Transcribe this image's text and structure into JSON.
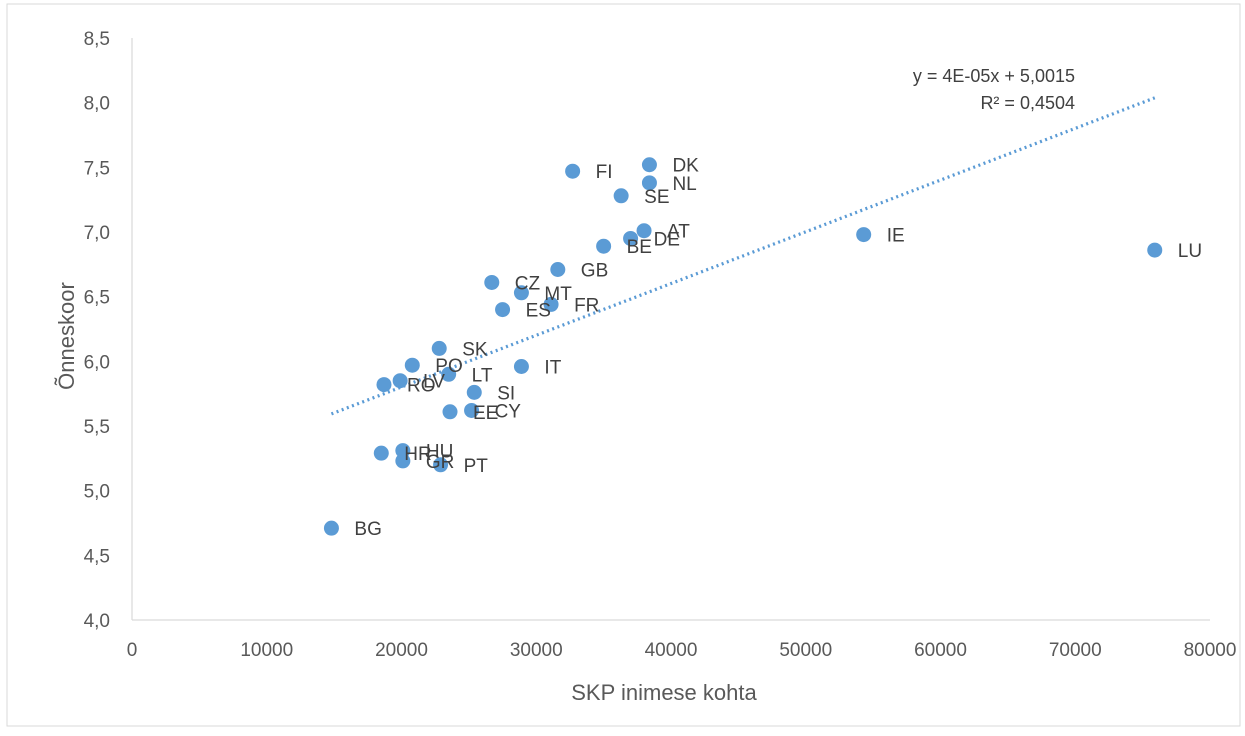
{
  "chart_data": {
    "type": "scatter",
    "xlabel": "SKP inimese kohta",
    "ylabel": "Õnneskoor",
    "xlim": [
      0,
      80000
    ],
    "ylim": [
      4.0,
      8.5
    ],
    "x_ticks": [
      "0",
      "10000",
      "20000",
      "30000",
      "40000",
      "50000",
      "60000",
      "70000",
      "80000"
    ],
    "y_ticks": [
      "4,0",
      "4,5",
      "5,0",
      "5,5",
      "6,0",
      "6,5",
      "7,0",
      "7,5",
      "8,0",
      "8,5"
    ],
    "grid": false,
    "marker_color": "#5b9bd5",
    "points": [
      {
        "label": "DK",
        "x": 38400,
        "y": 7.52
      },
      {
        "label": "FI",
        "x": 32700,
        "y": 7.47
      },
      {
        "label": "NL",
        "x": 38400,
        "y": 7.38
      },
      {
        "label": "SE",
        "x": 36300,
        "y": 7.28
      },
      {
        "label": "AT",
        "x": 38000,
        "y": 7.01
      },
      {
        "label": "DE",
        "x": 37000,
        "y": 6.95
      },
      {
        "label": "BE",
        "x": 35000,
        "y": 6.89
      },
      {
        "label": "IE",
        "x": 54300,
        "y": 6.98
      },
      {
        "label": "LU",
        "x": 75900,
        "y": 6.86
      },
      {
        "label": "GB",
        "x": 31600,
        "y": 6.71
      },
      {
        "label": "CZ",
        "x": 26700,
        "y": 6.61
      },
      {
        "label": "MT",
        "x": 28900,
        "y": 6.53
      },
      {
        "label": "FR",
        "x": 31100,
        "y": 6.44
      },
      {
        "label": "ES",
        "x": 27500,
        "y": 6.4
      },
      {
        "label": "SK",
        "x": 22800,
        "y": 6.1
      },
      {
        "label": "PO",
        "x": 20800,
        "y": 5.97
      },
      {
        "label": "IT",
        "x": 28900,
        "y": 5.96
      },
      {
        "label": "LT",
        "x": 23500,
        "y": 5.9
      },
      {
        "label": "LV",
        "x": 19900,
        "y": 5.85
      },
      {
        "label": "RO",
        "x": 18700,
        "y": 5.82
      },
      {
        "label": "SI",
        "x": 25400,
        "y": 5.76
      },
      {
        "label": "EE",
        "x": 23600,
        "y": 5.61
      },
      {
        "label": "CY",
        "x": 25200,
        "y": 5.62
      },
      {
        "label": "HU",
        "x": 20100,
        "y": 5.31
      },
      {
        "label": "HR",
        "x": 18500,
        "y": 5.29
      },
      {
        "label": "GR",
        "x": 20100,
        "y": 5.23
      },
      {
        "label": "PT",
        "x": 22900,
        "y": 5.2
      },
      {
        "label": "BG",
        "x": 14800,
        "y": 4.71
      }
    ],
    "trendline": {
      "type": "linear",
      "slope": 4e-05,
      "intercept": 5.0015,
      "x_start": 14800,
      "x_end": 75900,
      "color": "#5b9bd5",
      "equation_text": "y = 4E-05x + 5,0015",
      "r2_text": "R² = 0,4504"
    }
  }
}
